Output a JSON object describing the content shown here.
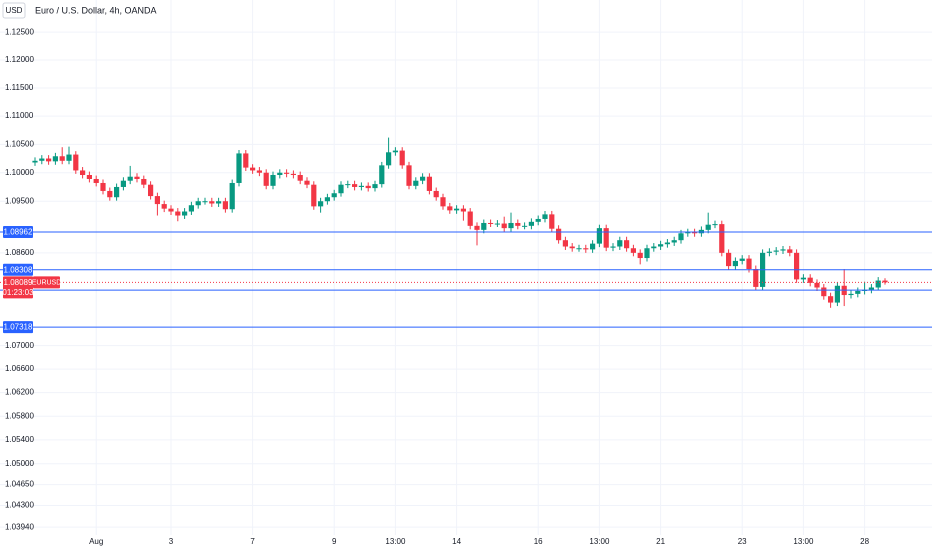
{
  "chart_data": {
    "type": "candlestick",
    "title": "Euro / U.S. Dollar, 4h, OANDA",
    "currency": "USD",
    "log_scale": true,
    "grid": true,
    "up_color": "#089981",
    "down_color": "#f23645",
    "line_color": "#2962ff",
    "ylim": [
      1.0381,
      1.1308
    ],
    "yticks": [
      {
        "value": 1.125,
        "label": "1.12500"
      },
      {
        "value": 1.12,
        "label": "1.12000"
      },
      {
        "value": 1.115,
        "label": "1.11500"
      },
      {
        "value": 1.11,
        "label": "1.11000"
      },
      {
        "value": 1.105,
        "label": "1.10500"
      },
      {
        "value": 1.1,
        "label": "1.10000"
      },
      {
        "value": 1.095,
        "label": "1.09500"
      },
      {
        "value": 1.086,
        "label": "1.08600"
      },
      {
        "value": 1.07,
        "label": "1.07000"
      },
      {
        "value": 1.066,
        "label": "1.06600"
      },
      {
        "value": 1.062,
        "label": "1.06200"
      },
      {
        "value": 1.058,
        "label": "1.05800"
      },
      {
        "value": 1.054,
        "label": "1.05400"
      },
      {
        "value": 1.05,
        "label": "1.05000"
      },
      {
        "value": 1.0465,
        "label": "1.04650"
      },
      {
        "value": 1.043,
        "label": "1.04300"
      },
      {
        "value": 1.0394,
        "label": "1.03940"
      }
    ],
    "price_lines": [
      1.08962,
      1.08308,
      1.07954,
      1.07318
    ],
    "last_price": 1.08089,
    "countdown": "01:23:03",
    "symbol": "EURUSD",
    "categories": [
      null,
      null,
      null,
      null,
      null,
      null,
      null,
      null,
      null,
      "Aug",
      null,
      null,
      null,
      null,
      null,
      null,
      null,
      null,
      null,
      null,
      "3",
      null,
      null,
      null,
      null,
      null,
      null,
      null,
      null,
      null,
      null,
      null,
      "7",
      null,
      null,
      null,
      null,
      null,
      null,
      null,
      null,
      null,
      null,
      null,
      "9",
      null,
      null,
      null,
      null,
      null,
      null,
      null,
      null,
      "13:00",
      null,
      null,
      null,
      null,
      null,
      null,
      null,
      null,
      "14",
      null,
      null,
      null,
      null,
      null,
      null,
      null,
      null,
      null,
      null,
      null,
      "16",
      null,
      null,
      null,
      null,
      null,
      null,
      null,
      null,
      "13:00",
      null,
      null,
      null,
      null,
      null,
      null,
      null,
      null,
      "21",
      null,
      null,
      null,
      null,
      null,
      null,
      null,
      null,
      null,
      null,
      null,
      "23",
      null,
      null,
      null,
      null,
      null,
      null,
      null,
      null,
      "13:00",
      null,
      null,
      null,
      null,
      null,
      null,
      null,
      null,
      "28",
      null,
      null,
      null
    ],
    "open": [
      1.1018,
      1.1021,
      1.1025,
      1.102,
      1.1029,
      1.1021,
      1.1032,
      1.1004,
      1.0996,
      1.0989,
      1.0982,
      1.0968,
      1.0957,
      1.0975,
      1.0986,
      1.0993,
      1.0989,
      1.0979,
      1.0959,
      1.0945,
      1.0937,
      1.0932,
      1.0925,
      1.0932,
      1.0943,
      1.095,
      1.095,
      1.0946,
      1.095,
      1.0936,
      1.0982,
      1.1034,
      1.1009,
      1.1004,
      1.1,
      1.0977,
      1.0996,
      1.1,
      1.0998,
      1.0996,
      1.0986,
      1.0979,
      1.0941,
      1.095,
      1.0957,
      1.0964,
      1.0979,
      1.098,
      1.0975,
      1.0977,
      1.0973,
      1.098,
      1.1013,
      1.1036,
      1.1039,
      1.1013,
      1.0977,
      1.0986,
      1.0993,
      1.0968,
      1.0957,
      1.0941,
      1.0934,
      1.0937,
      1.0932,
      1.0907,
      1.09,
      1.0912,
      1.0911,
      1.0911,
      1.0903,
      1.0912,
      1.0907,
      1.0907,
      1.0914,
      1.0919,
      1.0927,
      1.0902,
      1.0882,
      1.0871,
      1.0868,
      1.0868,
      1.0866,
      1.0876,
      1.0903,
      1.0869,
      1.0871,
      1.0882,
      1.0868,
      1.086,
      1.0851,
      1.0868,
      1.0871,
      1.0875,
      1.0878,
      1.0882,
      1.0894,
      1.0896,
      1.0894,
      1.09,
      1.0909,
      1.091,
      1.086,
      1.0837,
      1.0846,
      1.085,
      1.0832,
      1.0801,
      1.086,
      1.0862,
      1.0864,
      1.0866,
      1.086,
      1.0814,
      1.0817,
      1.0808,
      1.08,
      1.0785,
      1.0774,
      1.0803,
      1.0787,
      1.0789,
      1.0794,
      1.0796,
      1.08,
      1.0812
    ],
    "high": [
      1.1027,
      1.1031,
      1.1031,
      1.1035,
      1.1045,
      1.1046,
      1.1038,
      1.101,
      1.1002,
      1.0995,
      1.0988,
      1.0974,
      1.0981,
      1.0992,
      1.1012,
      1.0999,
      1.0995,
      1.0985,
      1.0965,
      1.0951,
      1.0943,
      1.0938,
      1.0938,
      1.0949,
      1.0956,
      1.0956,
      1.0956,
      1.0956,
      1.0956,
      1.0988,
      1.104,
      1.104,
      1.1015,
      1.101,
      1.1006,
      1.1002,
      1.1006,
      1.1006,
      1.1004,
      1.1002,
      1.0992,
      1.0985,
      1.0956,
      1.0963,
      1.097,
      1.0985,
      1.0986,
      1.0986,
      1.0983,
      1.0983,
      1.0986,
      1.1019,
      1.1062,
      1.1045,
      1.1045,
      1.1019,
      1.0992,
      1.0999,
      1.0999,
      1.0974,
      1.0963,
      1.0947,
      1.0943,
      1.0943,
      1.0938,
      1.0913,
      1.0918,
      1.0918,
      1.0917,
      1.0923,
      1.093,
      1.0918,
      1.0913,
      1.092,
      1.0925,
      1.0933,
      1.0933,
      1.0908,
      1.0888,
      1.0877,
      1.0874,
      1.0874,
      1.0882,
      1.0909,
      1.0909,
      1.0877,
      1.0888,
      1.0888,
      1.0874,
      1.0866,
      1.0874,
      1.0877,
      1.0881,
      1.0884,
      1.0888,
      1.09,
      1.0902,
      1.0902,
      1.0906,
      1.093,
      1.0916,
      1.0916,
      1.0866,
      1.0852,
      1.0856,
      1.0856,
      1.0838,
      1.0866,
      1.0868,
      1.087,
      1.0872,
      1.0872,
      1.0866,
      1.0823,
      1.0823,
      1.0814,
      1.0806,
      1.0791,
      1.0809,
      1.0832,
      1.0795,
      1.08,
      1.081,
      1.0806,
      1.0818,
      1.0816
    ],
    "low": [
      1.1012,
      1.1015,
      1.1014,
      1.1014,
      1.1015,
      1.1015,
      1.0998,
      1.099,
      1.0983,
      1.0976,
      1.0962,
      1.0951,
      1.0951,
      1.0969,
      1.098,
      1.0983,
      1.0973,
      1.0953,
      1.0925,
      1.0931,
      1.0926,
      1.0915,
      1.0919,
      1.0926,
      1.0937,
      1.0944,
      1.094,
      1.094,
      1.093,
      1.093,
      1.0976,
      1.1003,
      1.0998,
      1.0994,
      1.0971,
      1.0971,
      1.099,
      1.0992,
      1.099,
      1.098,
      1.0973,
      1.0935,
      1.093,
      1.0944,
      1.0951,
      1.0958,
      1.0973,
      1.0969,
      1.0969,
      1.0967,
      1.0967,
      1.0974,
      1.1007,
      1.103,
      1.1007,
      1.0971,
      1.0971,
      1.098,
      1.0962,
      1.0951,
      1.0935,
      1.0928,
      1.0928,
      1.0916,
      1.0901,
      1.0873,
      1.0894,
      1.0905,
      1.0905,
      1.0897,
      1.0897,
      1.0901,
      1.0901,
      1.0901,
      1.0908,
      1.0913,
      1.0896,
      1.0876,
      1.0865,
      1.0862,
      1.0862,
      1.086,
      1.086,
      1.087,
      1.0863,
      1.0863,
      1.0865,
      1.0862,
      1.0854,
      1.084,
      1.0845,
      1.0862,
      1.0865,
      1.0869,
      1.0872,
      1.0876,
      1.0888,
      1.0888,
      1.0888,
      1.0894,
      1.0903,
      1.0854,
      1.0831,
      1.0831,
      1.084,
      1.0826,
      1.0795,
      1.0795,
      1.0854,
      1.0856,
      1.0858,
      1.0854,
      1.0808,
      1.0808,
      1.0802,
      1.0794,
      1.0779,
      1.0765,
      1.0768,
      1.0768,
      1.0781,
      1.0783,
      1.0788,
      1.079,
      1.0795,
      1.0805
    ],
    "close": [
      1.1021,
      1.1025,
      1.102,
      1.1029,
      1.1021,
      1.1032,
      1.1004,
      1.0996,
      1.0989,
      1.0982,
      1.0968,
      1.0957,
      1.0975,
      1.0986,
      1.0993,
      1.0989,
      1.0979,
      1.0959,
      1.0945,
      1.0937,
      1.0932,
      1.0925,
      1.0932,
      1.0943,
      1.095,
      1.095,
      1.0946,
      1.095,
      1.0936,
      1.0982,
      1.1034,
      1.1009,
      1.1004,
      1.1,
      1.0977,
      1.0996,
      1.1,
      1.0998,
      1.0996,
      1.0986,
      1.0979,
      1.0941,
      1.095,
      1.0957,
      1.0964,
      1.0979,
      1.098,
      1.0975,
      1.0977,
      1.0973,
      1.098,
      1.1013,
      1.1036,
      1.1039,
      1.1013,
      1.0977,
      1.0986,
      1.0993,
      1.0968,
      1.0957,
      1.0941,
      1.0934,
      1.0937,
      1.0932,
      1.0907,
      1.09,
      1.0912,
      1.0911,
      1.0911,
      1.0903,
      1.0912,
      1.0907,
      1.0907,
      1.0914,
      1.0919,
      1.0927,
      1.0902,
      1.0882,
      1.0871,
      1.0868,
      1.0868,
      1.0866,
      1.0876,
      1.0903,
      1.0869,
      1.0871,
      1.0882,
      1.0868,
      1.086,
      1.0851,
      1.0868,
      1.0871,
      1.0875,
      1.0878,
      1.0882,
      1.0894,
      1.0896,
      1.0894,
      1.09,
      1.0909,
      1.091,
      1.086,
      1.0837,
      1.0846,
      1.085,
      1.0832,
      1.0801,
      1.086,
      1.0862,
      1.0864,
      1.0866,
      1.086,
      1.0814,
      1.0817,
      1.0808,
      1.08,
      1.0785,
      1.0774,
      1.0803,
      1.0787,
      1.0789,
      1.0794,
      1.0796,
      1.08,
      1.0812,
      1.08089
    ]
  }
}
